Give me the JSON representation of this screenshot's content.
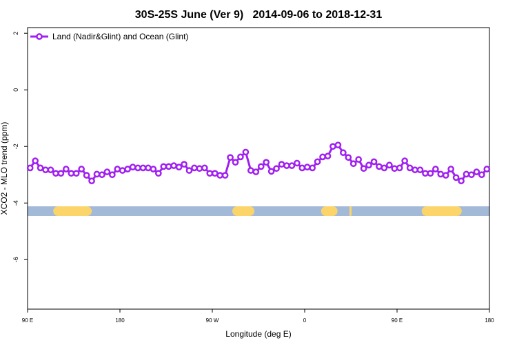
{
  "chart_data": {
    "type": "line",
    "title": "30S-25S June (Ver 9)   2014-09-06 to 2018-12-31",
    "x_label": "Longitude (deg E)",
    "y_label": "XCO2 - MLO trend (ppm)",
    "x": [
      92.5,
      97.5,
      102.5,
      107.5,
      112.5,
      117.5,
      122.5,
      127.5,
      132.5,
      137.5,
      142.5,
      147.5,
      152.5,
      157.5,
      162.5,
      167.5,
      172.5,
      177.5,
      182.5,
      187.5,
      192.5,
      197.5,
      202.5,
      207.5,
      212.5,
      217.5,
      222.5,
      227.5,
      232.5,
      237.5,
      242.5,
      247.5,
      252.5,
      257.5,
      262.5,
      267.5,
      272.5,
      277.5,
      282.5,
      287.5,
      292.5,
      297.5,
      302.5,
      307.5,
      312.5,
      317.5,
      322.5,
      327.5,
      332.5,
      337.5,
      342.5,
      347.5,
      352.5,
      357.5,
      362.5,
      367.5,
      372.5,
      377.5,
      382.5,
      387.5,
      392.5,
      397.5,
      402.5,
      407.5,
      412.5,
      417.5,
      422.5,
      427.5,
      432.5,
      437.5,
      442.5,
      447.5,
      452.5,
      457.5,
      462.5,
      467.5,
      472.5,
      477.5,
      482.5,
      487.5,
      492.5,
      497.5,
      502.5,
      507.5,
      512.5,
      517.5,
      522.5,
      527.5,
      532.5,
      537.5
    ],
    "series": [
      {
        "name": "Land (Nadir&Glint) and Ocean (Glint)",
        "color": "#a020f0",
        "values": [
          -2.76,
          -2.51,
          -2.76,
          -2.83,
          -2.83,
          -2.95,
          -2.95,
          -2.8,
          -2.95,
          -2.95,
          -2.8,
          -3.02,
          -3.22,
          -2.98,
          -3.0,
          -2.9,
          -3.0,
          -2.8,
          -2.85,
          -2.8,
          -2.73,
          -2.76,
          -2.76,
          -2.76,
          -2.8,
          -2.95,
          -2.71,
          -2.71,
          -2.68,
          -2.73,
          -2.63,
          -2.85,
          -2.76,
          -2.78,
          -2.76,
          -2.95,
          -2.95,
          -3.02,
          -3.02,
          -2.39,
          -2.56,
          -2.37,
          -2.2,
          -2.85,
          -2.9,
          -2.71,
          -2.56,
          -2.88,
          -2.78,
          -2.63,
          -2.68,
          -2.68,
          -2.59,
          -2.76,
          -2.73,
          -2.76,
          -2.54,
          -2.37,
          -2.34,
          -2.0,
          -1.95,
          -2.22,
          -2.39,
          -2.61,
          -2.46,
          -2.78,
          -2.66,
          -2.54,
          -2.71,
          -2.76,
          -2.66,
          -2.78,
          -2.76,
          -2.51,
          -2.76,
          -2.83,
          -2.83,
          -2.95,
          -2.95,
          -2.8,
          -2.98,
          -3.02,
          -2.8,
          -3.1,
          -3.22,
          -2.98,
          -3.0,
          -2.9,
          -3.0,
          -2.8
        ]
      }
    ],
    "land_segments": [
      [
        115,
        152.5
      ],
      [
        289.5,
        311
      ],
      [
        376,
        392
      ],
      [
        403.6,
        405.7
      ],
      [
        474,
        513
      ]
    ],
    "land_color": "#fcd56a",
    "ocean_color": "#a3b9d8",
    "xlim": [
      90,
      540
    ],
    "xticks": [
      {
        "value": 90,
        "label": "90 E"
      },
      180,
      {
        "value": 270,
        "label": "90 W"
      },
      {
        "value": 360,
        "label": "0"
      },
      {
        "value": 450,
        "label": "90 E"
      },
      {
        "value": 540,
        "label": "180"
      }
    ],
    "ylim": [
      -7.75,
      2.2
    ],
    "yticks": [
      2,
      0,
      -2,
      -4,
      -6
    ],
    "legend": "top-left"
  }
}
